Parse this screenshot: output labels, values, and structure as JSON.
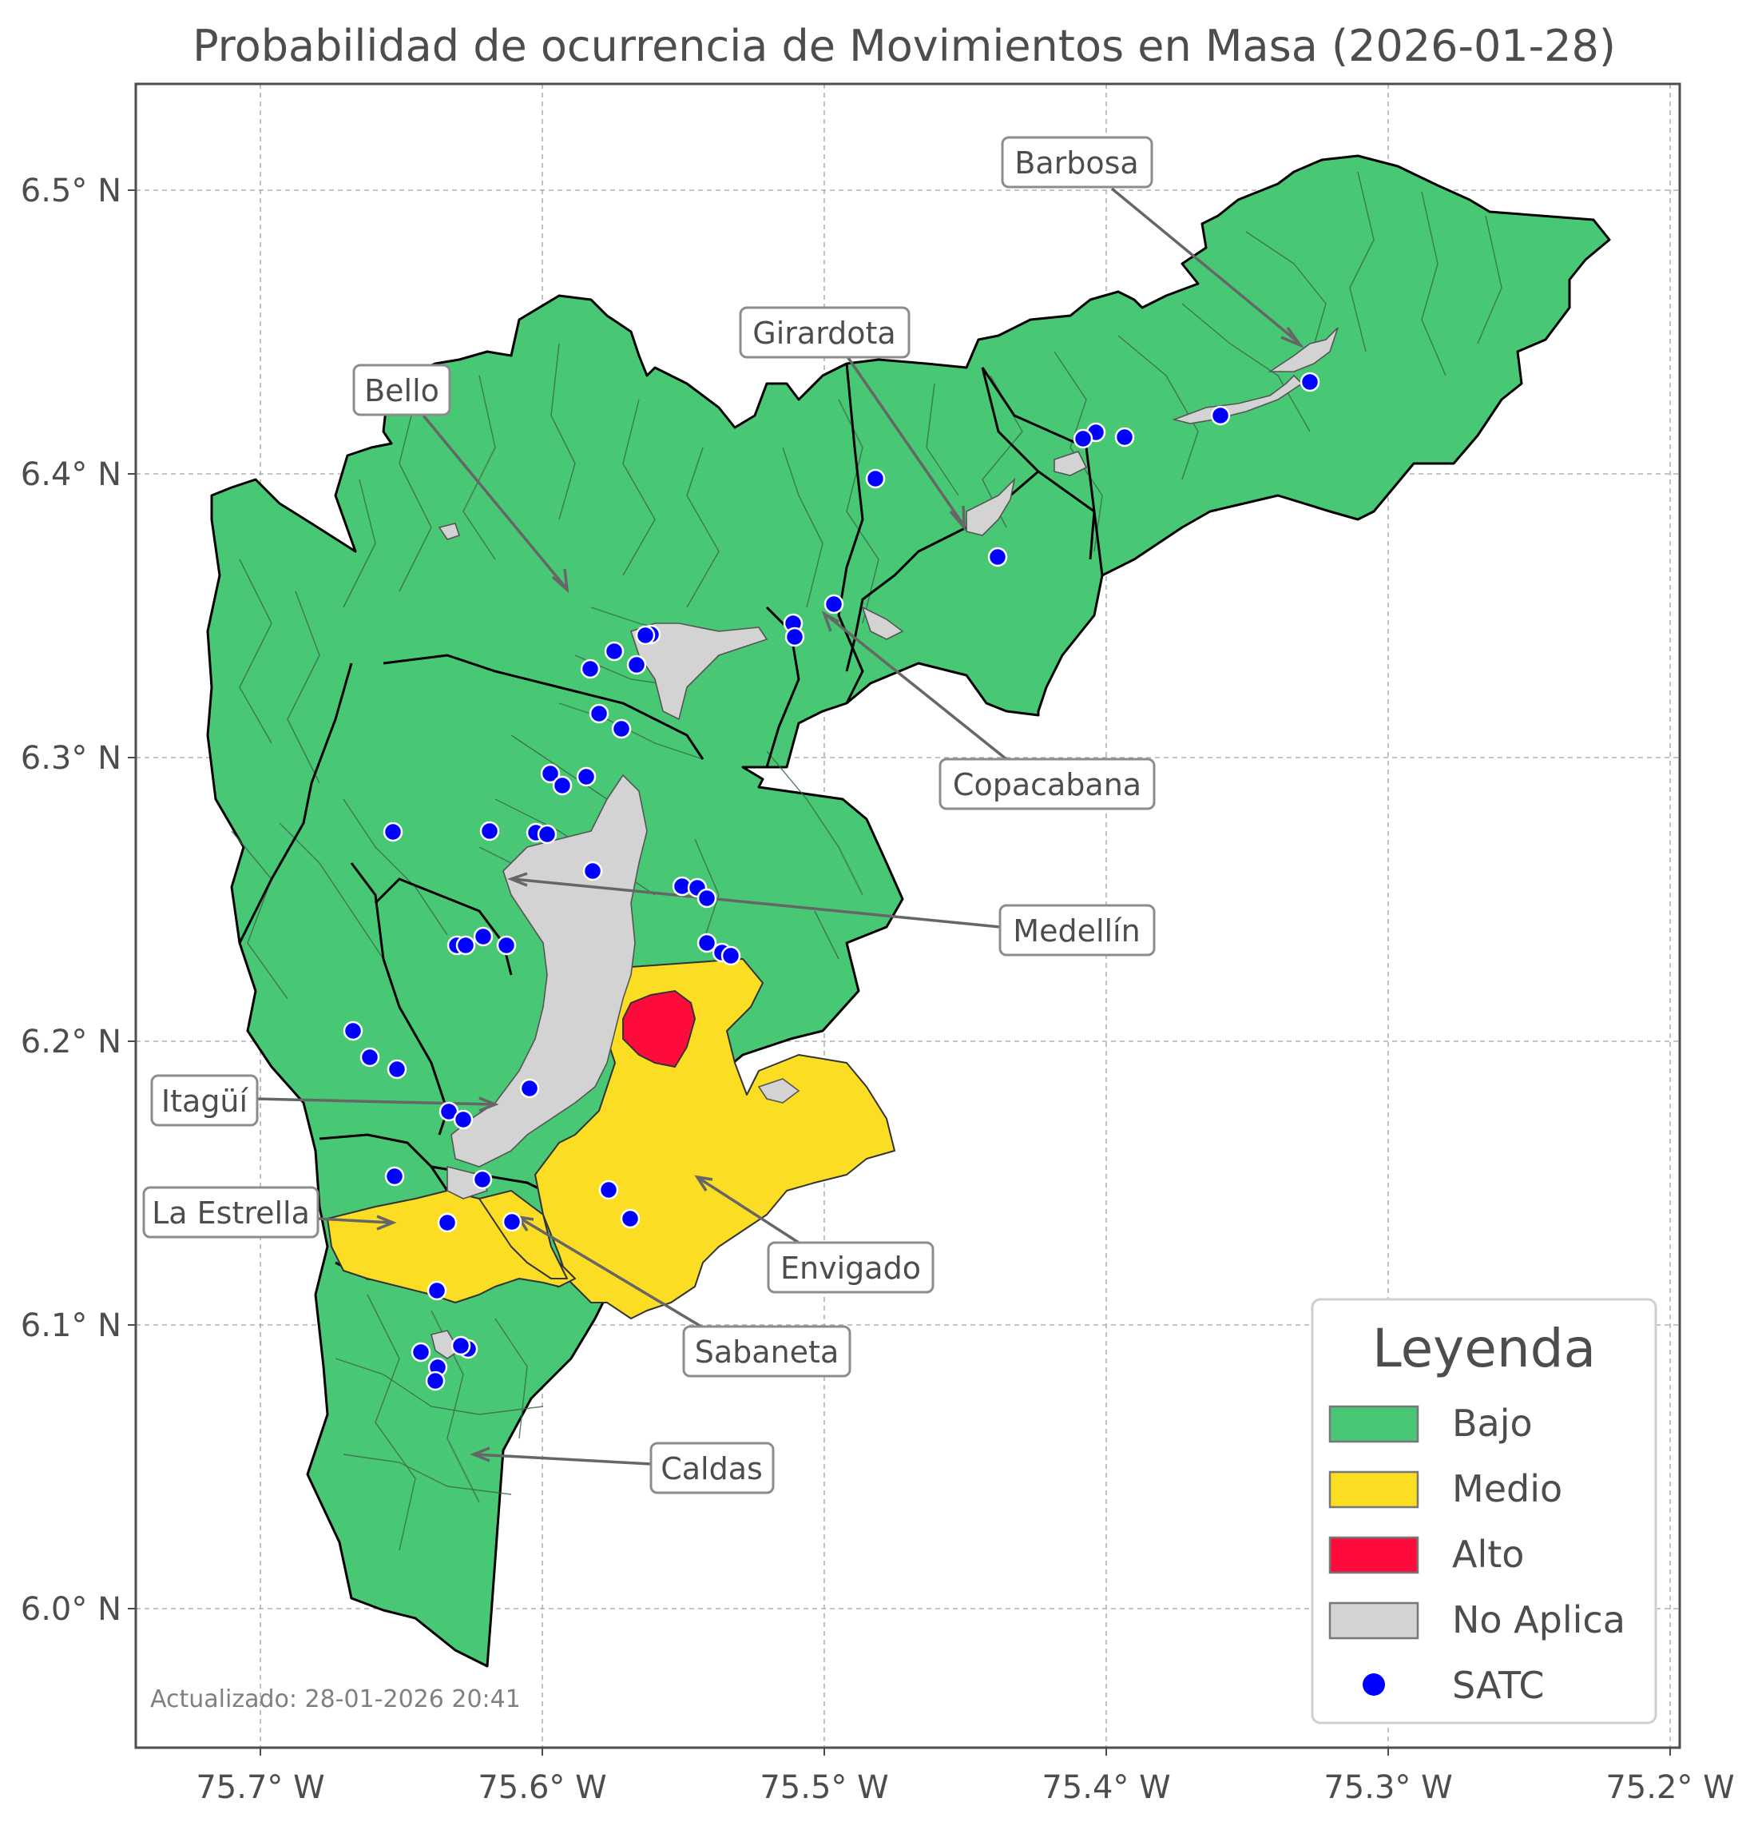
{
  "title": "Probabilidad de ocurrencia de Movimientos en Masa (2026-01-28)",
  "axes": {
    "x_ticks": [
      "75.7° W",
      "75.6° W",
      "75.5° W",
      "75.4° W",
      "75.3° W",
      "75.2° W"
    ],
    "y_ticks": [
      "6.5° N",
      "6.4° N",
      "6.3° N",
      "6.2° N",
      "6.1° N",
      "6.0° N"
    ],
    "grid": true
  },
  "municipalities": [
    {
      "name": "Barbosa",
      "level": "Bajo"
    },
    {
      "name": "Girardota",
      "level": "Bajo"
    },
    {
      "name": "Bello",
      "level": "Bajo"
    },
    {
      "name": "Copacabana",
      "level": "Bajo"
    },
    {
      "name": "Medellín",
      "level": "Bajo"
    },
    {
      "name": "Itagüí",
      "level": "Bajo"
    },
    {
      "name": "La Estrella",
      "level": "Medio"
    },
    {
      "name": "Envigado",
      "level": "Medio"
    },
    {
      "name": "Sabaneta",
      "level": "Medio"
    },
    {
      "name": "Caldas",
      "level": "Bajo"
    }
  ],
  "legend": {
    "title": "Leyenda",
    "placement": "bottom-right",
    "items": [
      {
        "label": "Bajo",
        "color": "#48c774",
        "shape": "patch"
      },
      {
        "label": "Medio",
        "color": "#fbdd24",
        "shape": "patch"
      },
      {
        "label": "Alto",
        "color": "#ff0b3b",
        "shape": "patch"
      },
      {
        "label": "No Aplica",
        "color": "#d3d3d3",
        "shape": "patch"
      },
      {
        "label": "SATC",
        "color": "#0000ff",
        "shape": "dot"
      }
    ]
  },
  "updated": "Actualizado: 28-01-2026 20:41"
}
